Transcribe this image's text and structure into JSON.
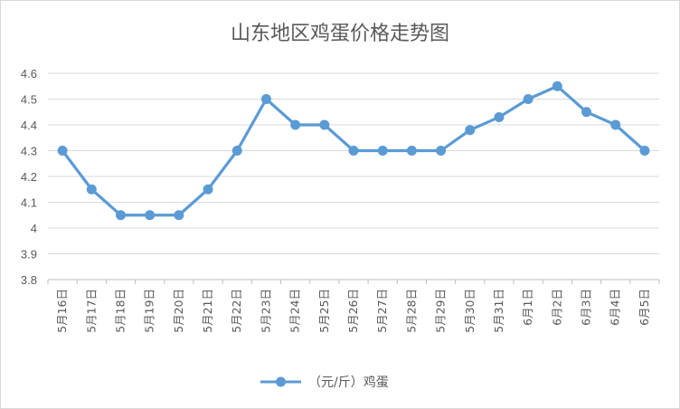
{
  "chart_data": {
    "type": "line",
    "title": "山东地区鸡蛋价格走势图",
    "xlabel": "",
    "ylabel": "",
    "categories": [
      "5月16日",
      "5月17日",
      "5月18日",
      "5月19日",
      "5月20日",
      "5月21日",
      "5月22日",
      "5月23日",
      "5月24日",
      "5月25日",
      "5月26日",
      "5月27日",
      "5月28日",
      "5月29日",
      "5月30日",
      "5月31日",
      "6月1日",
      "6月2日",
      "6月3日",
      "6月4日",
      "6月5日"
    ],
    "series": [
      {
        "name": "（元/斤）鸡蛋",
        "values": [
          4.3,
          4.15,
          4.05,
          4.05,
          4.05,
          4.15,
          4.3,
          4.5,
          4.4,
          4.4,
          4.3,
          4.3,
          4.3,
          4.3,
          4.38,
          4.43,
          4.5,
          4.55,
          4.45,
          4.4,
          4.3
        ],
        "color": "#5b9bd5"
      }
    ],
    "ylim": [
      3.8,
      4.6
    ],
    "yticks": [
      "3.8",
      "3.9",
      "4",
      "4.1",
      "4.2",
      "4.3",
      "4.4",
      "4.5",
      "4.6"
    ],
    "grid": true,
    "legend_position": "bottom"
  }
}
